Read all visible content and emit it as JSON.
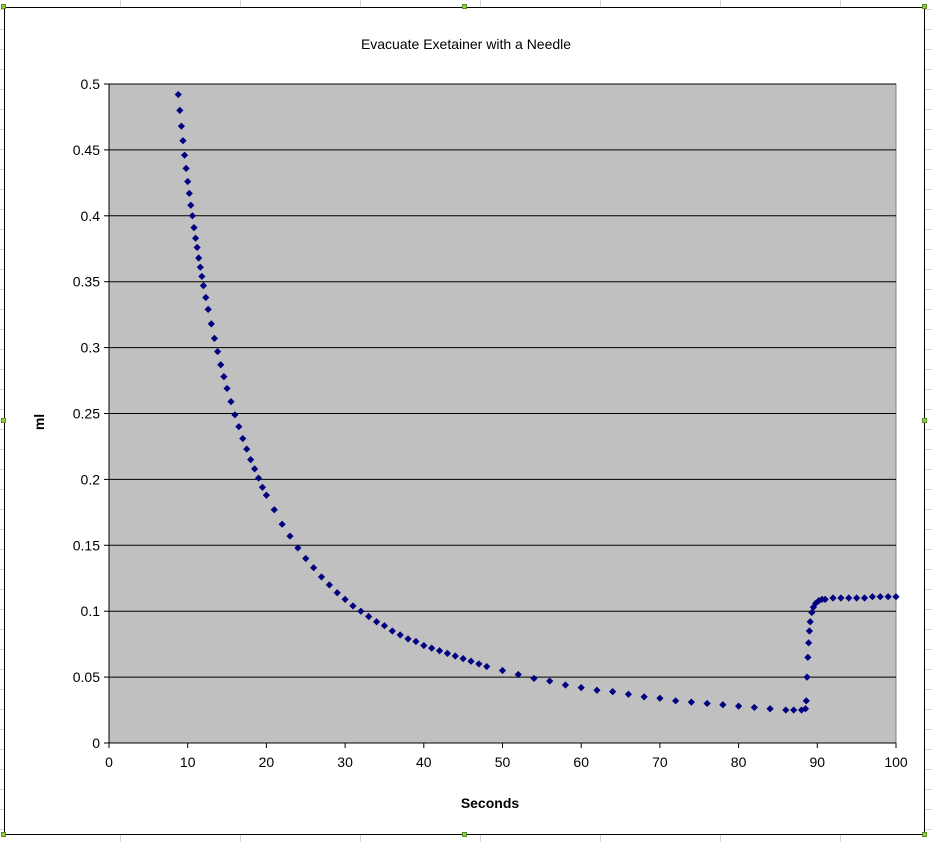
{
  "chart_data": {
    "type": "scatter",
    "title": "Evacuate Exetainer with a Needle",
    "xlabel": "Seconds",
    "ylabel": "ml",
    "xlim": [
      0,
      100
    ],
    "ylim": [
      0,
      0.5
    ],
    "x_ticks": [
      "0",
      "10",
      "20",
      "30",
      "40",
      "50",
      "60",
      "70",
      "80",
      "90",
      "100"
    ],
    "y_ticks": [
      "0",
      "0.05",
      "0.1",
      "0.15",
      "0.2",
      "0.25",
      "0.3",
      "0.35",
      "0.4",
      "0.45",
      "0.5"
    ],
    "grid": "horizontal major gridlines",
    "legend": "none",
    "plot_background": "#c0c0c0",
    "marker": "diamond",
    "marker_color": "#000080",
    "series": [
      {
        "points": [
          [
            8.8,
            0.492
          ],
          [
            9.0,
            0.48
          ],
          [
            9.2,
            0.468
          ],
          [
            9.4,
            0.457
          ],
          [
            9.6,
            0.446
          ],
          [
            9.8,
            0.436
          ],
          [
            10.0,
            0.426
          ],
          [
            10.2,
            0.417
          ],
          [
            10.4,
            0.408
          ],
          [
            10.6,
            0.4
          ],
          [
            10.8,
            0.391
          ],
          [
            11.0,
            0.383
          ],
          [
            11.2,
            0.376
          ],
          [
            11.4,
            0.368
          ],
          [
            11.6,
            0.361
          ],
          [
            11.8,
            0.354
          ],
          [
            12.0,
            0.347
          ],
          [
            12.3,
            0.338
          ],
          [
            12.6,
            0.329
          ],
          [
            13.0,
            0.318
          ],
          [
            13.4,
            0.307
          ],
          [
            13.8,
            0.297
          ],
          [
            14.2,
            0.287
          ],
          [
            14.6,
            0.278
          ],
          [
            15.0,
            0.269
          ],
          [
            15.5,
            0.259
          ],
          [
            16.0,
            0.249
          ],
          [
            16.5,
            0.24
          ],
          [
            17.0,
            0.231
          ],
          [
            17.5,
            0.223
          ],
          [
            18.0,
            0.215
          ],
          [
            18.5,
            0.208
          ],
          [
            19.0,
            0.201
          ],
          [
            19.5,
            0.194
          ],
          [
            20.0,
            0.188
          ],
          [
            21.0,
            0.177
          ],
          [
            22.0,
            0.166
          ],
          [
            23.0,
            0.157
          ],
          [
            24.0,
            0.148
          ],
          [
            25.0,
            0.14
          ],
          [
            26.0,
            0.133
          ],
          [
            27.0,
            0.126
          ],
          [
            28.0,
            0.12
          ],
          [
            29.0,
            0.114
          ],
          [
            30.0,
            0.109
          ],
          [
            31.0,
            0.104
          ],
          [
            32.0,
            0.1
          ],
          [
            33.0,
            0.096
          ],
          [
            34.0,
            0.092
          ],
          [
            35.0,
            0.089
          ],
          [
            36.0,
            0.085
          ],
          [
            37.0,
            0.082
          ],
          [
            38.0,
            0.079
          ],
          [
            39.0,
            0.077
          ],
          [
            40.0,
            0.074
          ],
          [
            41.0,
            0.072
          ],
          [
            42.0,
            0.07
          ],
          [
            43.0,
            0.068
          ],
          [
            44.0,
            0.066
          ],
          [
            45.0,
            0.064
          ],
          [
            46.0,
            0.062
          ],
          [
            47.0,
            0.06
          ],
          [
            48.0,
            0.058
          ],
          [
            50.0,
            0.055
          ],
          [
            52.0,
            0.052
          ],
          [
            54.0,
            0.049
          ],
          [
            56.0,
            0.047
          ],
          [
            58.0,
            0.044
          ],
          [
            60.0,
            0.042
          ],
          [
            62.0,
            0.04
          ],
          [
            64.0,
            0.039
          ],
          [
            66.0,
            0.037
          ],
          [
            68.0,
            0.035
          ],
          [
            70.0,
            0.034
          ],
          [
            72.0,
            0.032
          ],
          [
            74.0,
            0.031
          ],
          [
            76.0,
            0.03
          ],
          [
            78.0,
            0.029
          ],
          [
            80.0,
            0.028
          ],
          [
            82.0,
            0.027
          ],
          [
            84.0,
            0.026
          ],
          [
            86.0,
            0.025
          ],
          [
            87.0,
            0.025
          ],
          [
            88.0,
            0.025
          ],
          [
            88.5,
            0.026
          ],
          [
            88.6,
            0.032
          ],
          [
            88.7,
            0.05
          ],
          [
            88.8,
            0.065
          ],
          [
            88.9,
            0.076
          ],
          [
            89.0,
            0.085
          ],
          [
            89.1,
            0.092
          ],
          [
            89.3,
            0.099
          ],
          [
            89.5,
            0.103
          ],
          [
            89.8,
            0.106
          ],
          [
            90.2,
            0.108
          ],
          [
            90.6,
            0.109
          ],
          [
            91.0,
            0.109
          ],
          [
            92.0,
            0.11
          ],
          [
            93.0,
            0.11
          ],
          [
            94.0,
            0.11
          ],
          [
            95.0,
            0.11
          ],
          [
            96.0,
            0.11
          ],
          [
            97.0,
            0.111
          ],
          [
            98.0,
            0.111
          ],
          [
            99.0,
            0.111
          ],
          [
            100.0,
            0.111
          ]
        ]
      }
    ]
  }
}
